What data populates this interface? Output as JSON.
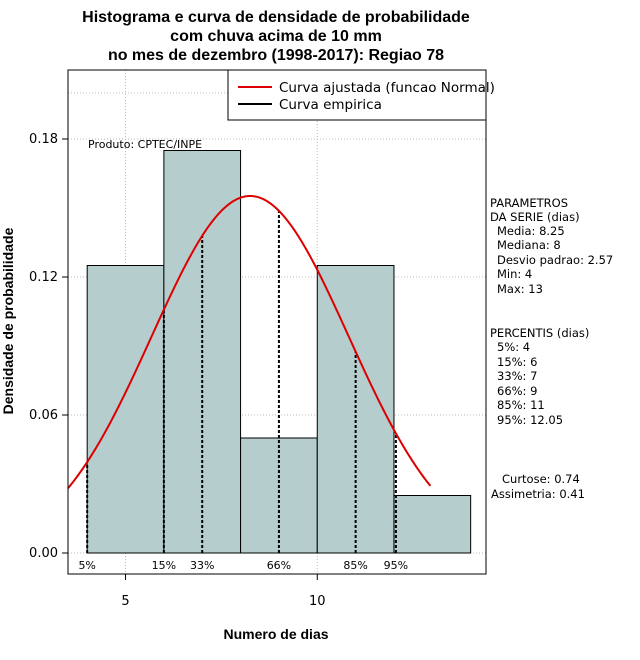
{
  "chart_data": {
    "type": "bar",
    "title": [
      "Histograma e curva de densidade de probabilidade",
      "com chuva acima de 10 mm",
      "no mes de dezembro (1998-2017): Regiao 78"
    ],
    "xlabel": "Numero de dias",
    "ylabel": "Densidade de probabilidade",
    "xlim": [
      3.5,
      14.4
    ],
    "ylim": [
      0,
      0.21
    ],
    "x_ticks": [
      5,
      10
    ],
    "x_tick_labels": [
      "5",
      "10"
    ],
    "y_ticks": [
      0.0,
      0.06,
      0.12,
      0.18
    ],
    "y_tick_labels": [
      "0.00",
      "0.06",
      "0.12",
      "0.18"
    ],
    "grid_x": [
      5,
      10
    ],
    "grid_y": [
      0.0,
      0.06,
      0.12,
      0.18
    ],
    "bins": [
      {
        "x0": 4,
        "x1": 6,
        "density": 0.125
      },
      {
        "x0": 6,
        "x1": 8,
        "density": 0.175
      },
      {
        "x0": 8,
        "x1": 10,
        "density": 0.05
      },
      {
        "x0": 10,
        "x1": 12,
        "density": 0.125
      },
      {
        "x0": 12,
        "x1": 14,
        "density": 0.025
      }
    ],
    "bar_color": "#b6cdcd",
    "normal_curve": {
      "mean": 8.25,
      "sd": 2.57,
      "color": "#dd0000",
      "x_range": [
        3.5,
        12.95
      ]
    },
    "percentiles": [
      {
        "label": "5%",
        "x": 4
      },
      {
        "label": "15%",
        "x": 6
      },
      {
        "label": "33%",
        "x": 7
      },
      {
        "label": "66%",
        "x": 9
      },
      {
        "label": "85%",
        "x": 11
      },
      {
        "label": "95%",
        "x": 12.05
      }
    ],
    "legend": {
      "placement": "top-right",
      "entries": [
        {
          "label": "Curva ajustada (funcao Normal)",
          "color": "#dd0000"
        },
        {
          "label": "Curva empirica",
          "color": "#000000"
        }
      ]
    },
    "annotation": "Produto: CPTEC/INPE",
    "side_panel": {
      "params_title": [
        "PARAMETROS",
        "DA SERIE (dias)"
      ],
      "params": [
        "Media: 8.25",
        "Mediana: 8",
        "Desvio padrao: 2.57",
        "Min: 4",
        "Max: 13"
      ],
      "percentis_title": "PERCENTIS (dias)",
      "percentis": [
        "5%: 4",
        "15%: 6",
        "33%: 7",
        "66%: 9",
        "85%: 11",
        "95%: 12.05"
      ],
      "shape": [
        "Curtose: 0.74",
        "Assimetria: 0.41"
      ]
    }
  }
}
